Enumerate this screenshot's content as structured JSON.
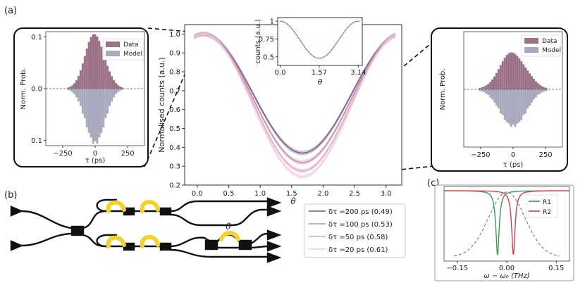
{
  "panels": {
    "a": "(a)",
    "b": "(b)",
    "c": "(c)"
  },
  "colors": {
    "data_hist": "#9c7288",
    "model_hist": "#a9a9bd",
    "series": [
      "#6e5a80",
      "#c08aa8",
      "#dba6c2",
      "#f0c8dc"
    ],
    "r1": "#3a9a55",
    "r2": "#d0414b",
    "guide": "#7a7f95",
    "heater": "#f3d22b"
  },
  "chart_data": [
    {
      "id": "main",
      "type": "line",
      "xlabel": "θ",
      "ylabel": "Normalised counts (a.u.)",
      "xlim": [
        -0.2,
        3.25
      ],
      "ylim": [
        0.2,
        1.05
      ],
      "xticks": [
        "0.0",
        "0.5",
        "1.0",
        "1.5",
        "2.0",
        "2.5",
        "3.0"
      ],
      "xtick_values": [
        0,
        0.5,
        1,
        1.5,
        2,
        2.5,
        3
      ],
      "yticks": [
        "0.2",
        "0.3",
        "0.4",
        "0.5",
        "0.6",
        "0.7",
        "0.8",
        "0.9",
        "1.0"
      ],
      "ytick_values": [
        0.2,
        0.3,
        0.4,
        0.5,
        0.6,
        0.7,
        0.8,
        0.9,
        1.0
      ],
      "theta_peak": 0.1,
      "legend_position": "right",
      "series": [
        {
          "name": "δτ =200 ps (0.49)",
          "min": 0.37
        },
        {
          "name": "δτ =100 ps (0.53)",
          "min": 0.32
        },
        {
          "name": "δτ =50 ps (0.58)",
          "min": 0.275
        },
        {
          "name": "δτ =20 ps (0.61)",
          "min": 0.245
        }
      ]
    },
    {
      "id": "inset",
      "type": "line",
      "xlabel": "θ",
      "ylabel": "counts (a.u.)",
      "xlim": [
        -0.1,
        3.3
      ],
      "ylim": [
        0.38,
        1.05
      ],
      "xticks": [
        "0.0",
        "1.57",
        "3.14"
      ],
      "xtick_values": [
        0,
        1.57,
        3.14
      ],
      "yticks": [
        "0.5",
        "0.75",
        "1"
      ],
      "ytick_values": [
        0.5,
        0.75,
        1
      ],
      "min": 0.48
    },
    {
      "id": "hist_left",
      "type": "bar",
      "xlabel": "τ (ps)",
      "ylabel": "Norm. Prob.",
      "xlim": [
        -380,
        380
      ],
      "ylim": [
        -0.11,
        0.11
      ],
      "xticks": [
        "−250",
        "0",
        "250"
      ],
      "xtick_values": [
        -250,
        0,
        250
      ],
      "yticks": [
        "0.1",
        "0.0",
        "0.1"
      ],
      "ytick_values": [
        0.1,
        0,
        -0.1
      ],
      "sigma": 75,
      "peak": 0.105,
      "legend": [
        "Data",
        "Model"
      ],
      "legend_position": "top-right"
    },
    {
      "id": "hist_right",
      "type": "bar",
      "xlabel": "τ (ps)",
      "ylabel": "Norm. Prob.",
      "xlim": [
        -380,
        380
      ],
      "ylim": [
        -0.11,
        0.11
      ],
      "xticks": [
        "−250",
        "0",
        "250"
      ],
      "xtick_values": [
        -250,
        0,
        250
      ],
      "sigma": 100,
      "peak": 0.07,
      "legend": [
        "Data",
        "Model"
      ],
      "legend_position": "top-right"
    },
    {
      "id": "filters",
      "type": "line",
      "xlabel": "ω − ω₀ (THz)",
      "xlim": [
        -0.19,
        0.19
      ],
      "xticks": [
        "−0.15",
        "0.00",
        "0.15"
      ],
      "xtick_values": [
        -0.15,
        0,
        0.15
      ],
      "legend_position": "right",
      "series": [
        {
          "name": "R1",
          "center": -0.028,
          "width": 0.006
        },
        {
          "name": "R2",
          "center": 0.02,
          "width": 0.006
        }
      ],
      "envelope_sigma": 0.055
    }
  ],
  "circuit": {
    "phase_label": "θ"
  }
}
